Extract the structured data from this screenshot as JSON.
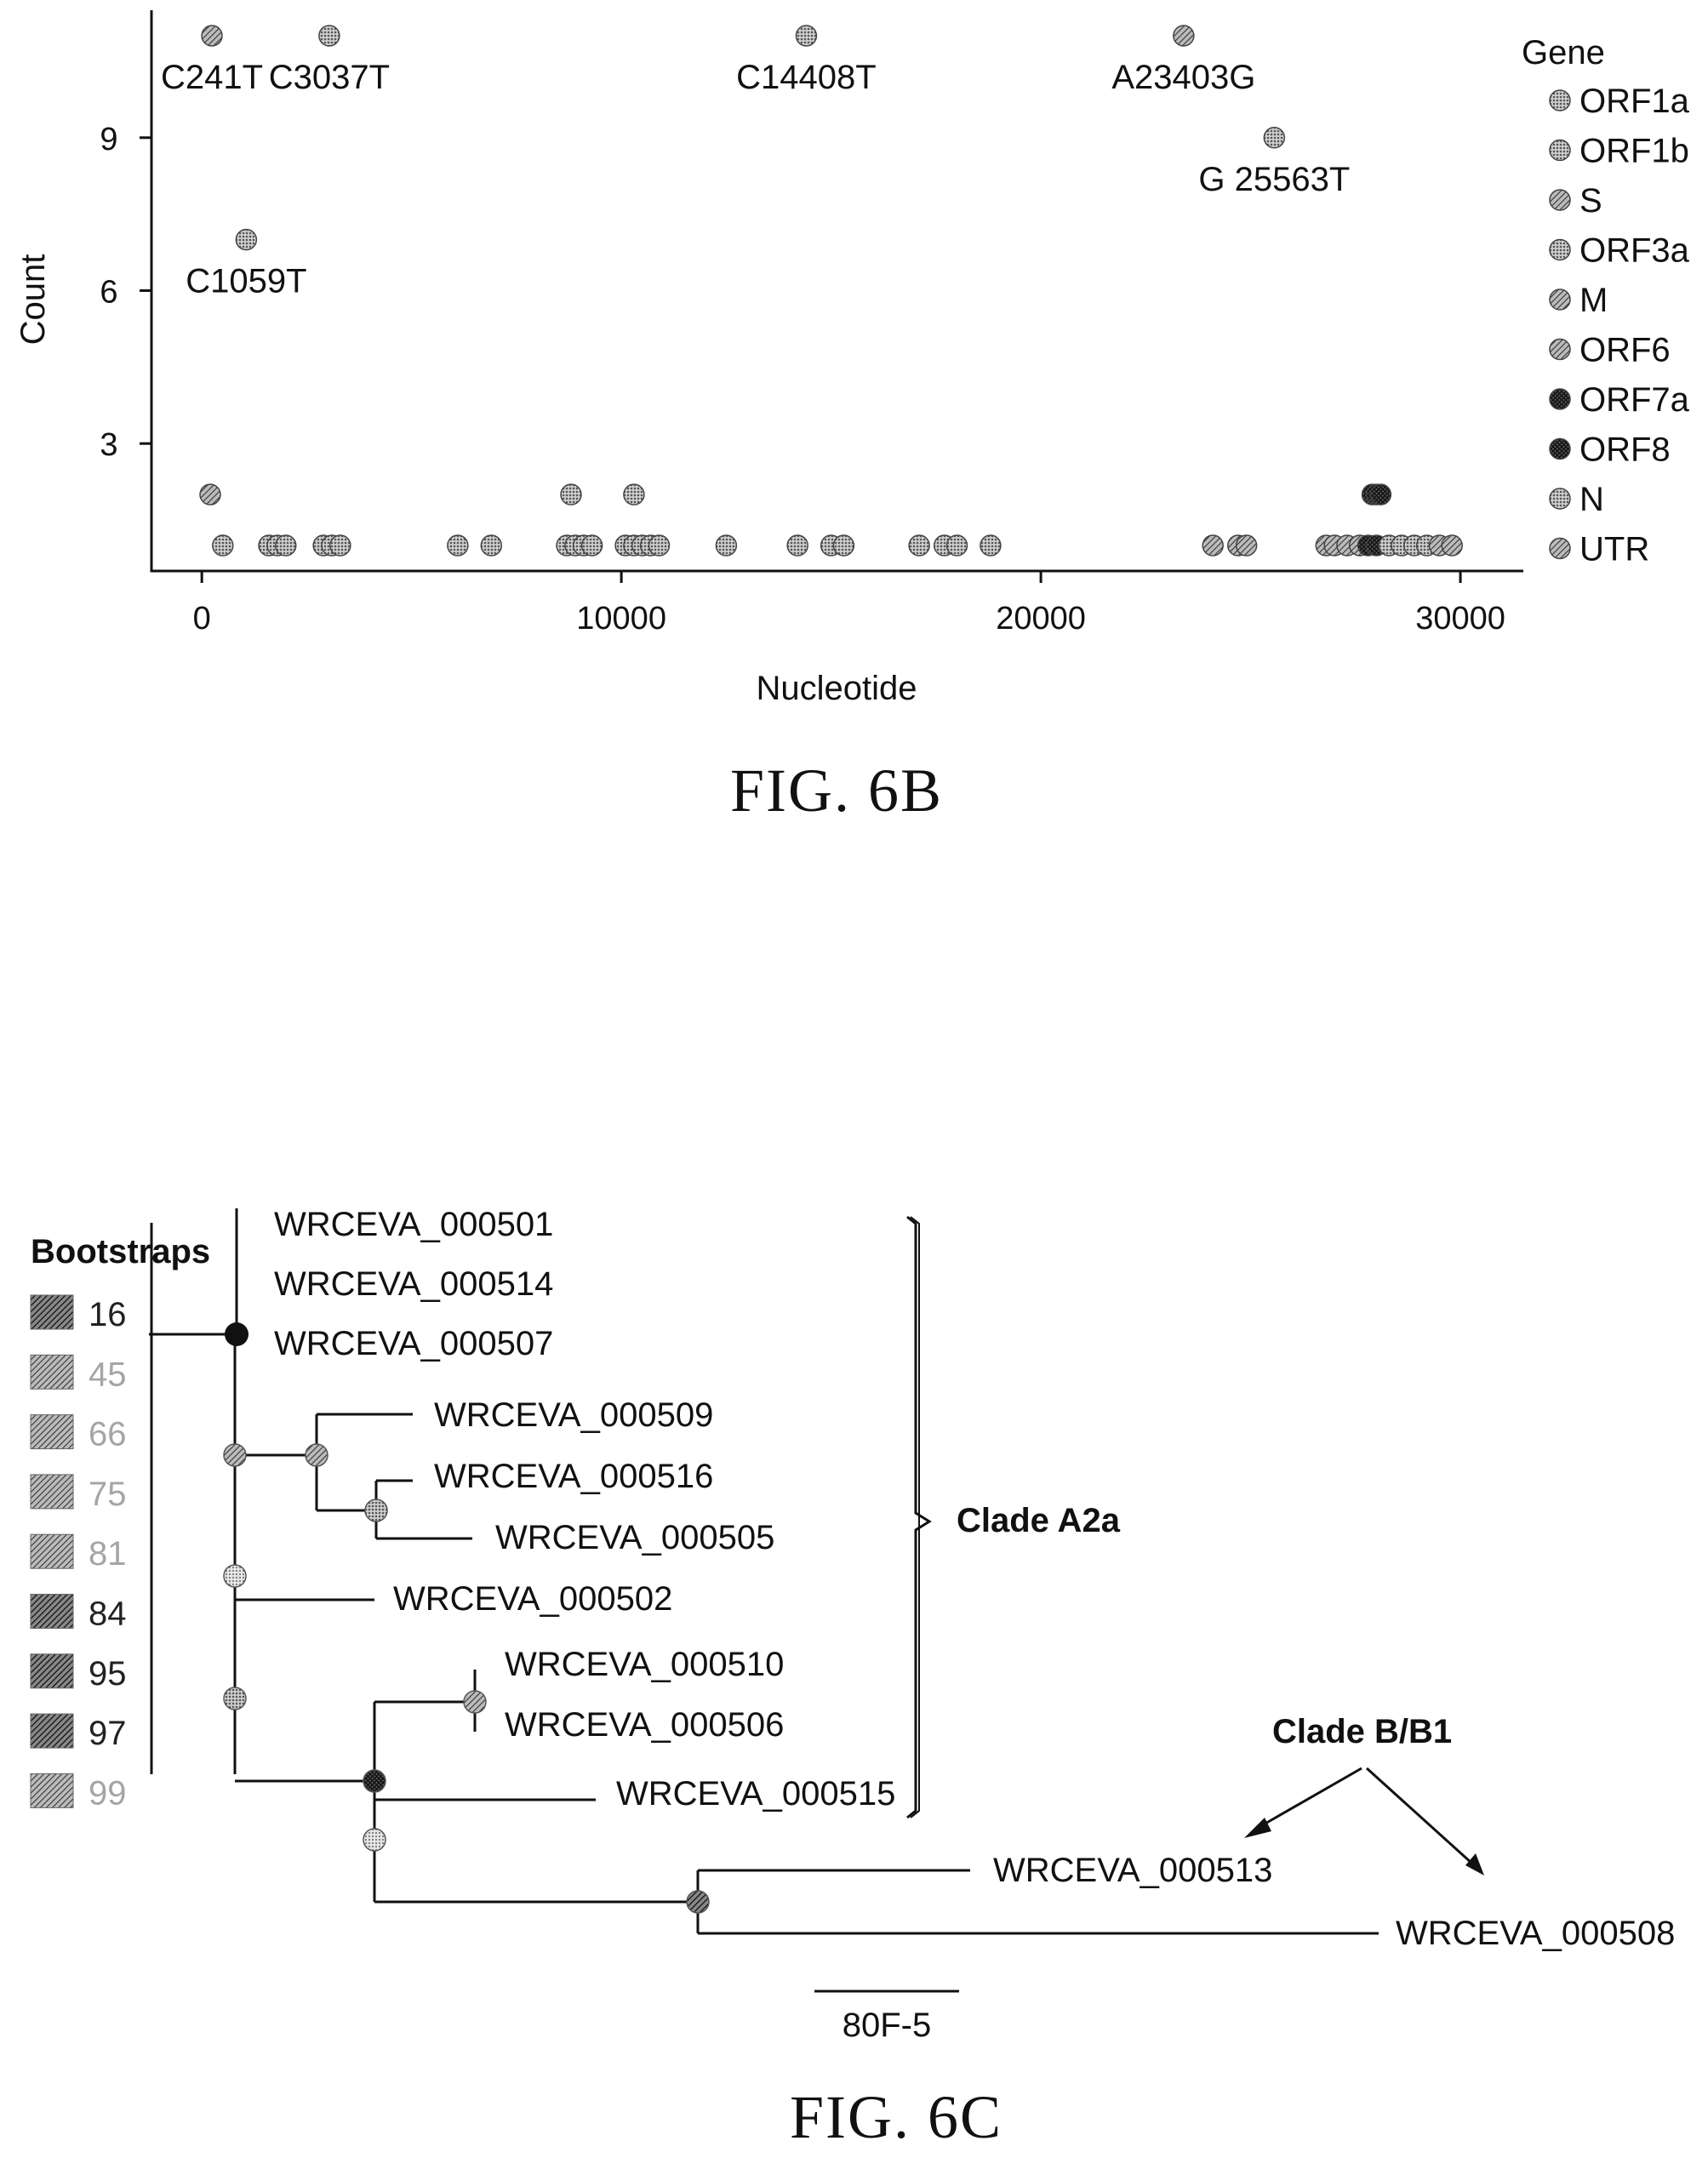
{
  "chart_data": [
    {
      "type": "scatter",
      "title": "",
      "xlabel": "Nucleotide",
      "ylabel": "Count",
      "xlim": [
        -1200,
        31500
      ],
      "ylim": [
        0.5,
        11.5
      ],
      "x_ticks": [
        0,
        10000,
        20000,
        30000
      ],
      "x_tick_labels": [
        "0",
        "10000",
        "20000",
        "30000"
      ],
      "y_ticks": [
        3,
        6,
        9
      ],
      "y_tick_labels": [
        "3",
        "6",
        "9"
      ],
      "grid": false,
      "legend_title": "Gene",
      "legend_placement": "right",
      "legend": [
        {
          "name": "ORF1a",
          "color": "#b4b4b4",
          "pattern": "dots"
        },
        {
          "name": "ORF1b",
          "color": "#c4c4c4",
          "pattern": "dots"
        },
        {
          "name": "S",
          "color": "#6e6e6e",
          "pattern": "hatch"
        },
        {
          "name": "ORF3a",
          "color": "#cfcfcf",
          "pattern": "dots"
        },
        {
          "name": "M",
          "color": "#555555",
          "pattern": "hatch"
        },
        {
          "name": "ORF6",
          "color": "#8a8a8a",
          "pattern": "hatch"
        },
        {
          "name": "ORF7a",
          "color": "#333333",
          "pattern": "cross"
        },
        {
          "name": "ORF8",
          "color": "#444444",
          "pattern": "cross"
        },
        {
          "name": "N",
          "color": "#bdbdbd",
          "pattern": "dots"
        },
        {
          "name": "UTR",
          "color": "#7a7a7a",
          "pattern": "hatch"
        }
      ],
      "points": [
        {
          "x": 241,
          "y": 11,
          "gene": "UTR"
        },
        {
          "x": 3037,
          "y": 11,
          "gene": "ORF1a"
        },
        {
          "x": 14408,
          "y": 11,
          "gene": "ORF1b"
        },
        {
          "x": 23403,
          "y": 11,
          "gene": "S"
        },
        {
          "x": 25563,
          "y": 9,
          "gene": "ORF3a"
        },
        {
          "x": 1059,
          "y": 7,
          "gene": "ORF1a"
        },
        {
          "x": 200,
          "y": 2,
          "gene": "UTR"
        },
        {
          "x": 8800,
          "y": 2,
          "gene": "ORF1a"
        },
        {
          "x": 10300,
          "y": 2,
          "gene": "ORF1a"
        },
        {
          "x": 27900,
          "y": 2,
          "gene": "ORF8"
        },
        {
          "x": 28000,
          "y": 2,
          "gene": "ORF8"
        },
        {
          "x": 28100,
          "y": 2,
          "gene": "ORF8"
        },
        {
          "x": 500,
          "y": 1,
          "gene": "ORF1a"
        },
        {
          "x": 1600,
          "y": 1,
          "gene": "ORF1a"
        },
        {
          "x": 1800,
          "y": 1,
          "gene": "ORF1a"
        },
        {
          "x": 2000,
          "y": 1,
          "gene": "ORF1a"
        },
        {
          "x": 2900,
          "y": 1,
          "gene": "ORF1a"
        },
        {
          "x": 3100,
          "y": 1,
          "gene": "ORF1a"
        },
        {
          "x": 3300,
          "y": 1,
          "gene": "ORF1a"
        },
        {
          "x": 6100,
          "y": 1,
          "gene": "ORF1a"
        },
        {
          "x": 6900,
          "y": 1,
          "gene": "ORF1a"
        },
        {
          "x": 8700,
          "y": 1,
          "gene": "ORF1a"
        },
        {
          "x": 8900,
          "y": 1,
          "gene": "ORF1a"
        },
        {
          "x": 9100,
          "y": 1,
          "gene": "ORF1a"
        },
        {
          "x": 9300,
          "y": 1,
          "gene": "ORF1a"
        },
        {
          "x": 10100,
          "y": 1,
          "gene": "ORF1a"
        },
        {
          "x": 10300,
          "y": 1,
          "gene": "ORF1a"
        },
        {
          "x": 10500,
          "y": 1,
          "gene": "ORF1a"
        },
        {
          "x": 10700,
          "y": 1,
          "gene": "ORF1a"
        },
        {
          "x": 10900,
          "y": 1,
          "gene": "ORF1a"
        },
        {
          "x": 12500,
          "y": 1,
          "gene": "ORF1a"
        },
        {
          "x": 14200,
          "y": 1,
          "gene": "ORF1b"
        },
        {
          "x": 15000,
          "y": 1,
          "gene": "ORF1b"
        },
        {
          "x": 15300,
          "y": 1,
          "gene": "ORF1b"
        },
        {
          "x": 17100,
          "y": 1,
          "gene": "ORF1b"
        },
        {
          "x": 17700,
          "y": 1,
          "gene": "ORF1b"
        },
        {
          "x": 18000,
          "y": 1,
          "gene": "ORF1b"
        },
        {
          "x": 18800,
          "y": 1,
          "gene": "ORF1b"
        },
        {
          "x": 24100,
          "y": 1,
          "gene": "S"
        },
        {
          "x": 24700,
          "y": 1,
          "gene": "S"
        },
        {
          "x": 24900,
          "y": 1,
          "gene": "S"
        },
        {
          "x": 26800,
          "y": 1,
          "gene": "M"
        },
        {
          "x": 27000,
          "y": 1,
          "gene": "M"
        },
        {
          "x": 27300,
          "y": 1,
          "gene": "M"
        },
        {
          "x": 27600,
          "y": 1,
          "gene": "ORF6"
        },
        {
          "x": 27800,
          "y": 1,
          "gene": "ORF7a"
        },
        {
          "x": 28000,
          "y": 1,
          "gene": "ORF8"
        },
        {
          "x": 28300,
          "y": 1,
          "gene": "N"
        },
        {
          "x": 28600,
          "y": 1,
          "gene": "N"
        },
        {
          "x": 28900,
          "y": 1,
          "gene": "N"
        },
        {
          "x": 29200,
          "y": 1,
          "gene": "N"
        },
        {
          "x": 29500,
          "y": 1,
          "gene": "UTR"
        },
        {
          "x": 29800,
          "y": 1,
          "gene": "UTR"
        }
      ],
      "annotations": [
        {
          "text": "C241T",
          "x": 241,
          "y": 11
        },
        {
          "text": "C3037T",
          "x": 3037,
          "y": 11
        },
        {
          "text": "C14408T",
          "x": 14408,
          "y": 11
        },
        {
          "text": "A23403G",
          "x": 23403,
          "y": 11
        },
        {
          "text": "G 25563T",
          "x": 25563,
          "y": 9
        },
        {
          "text": "C1059T",
          "x": 1059,
          "y": 7
        }
      ],
      "caption": "FIG. 6B"
    },
    {
      "type": "phylogenetic-tree",
      "caption": "FIG. 6C",
      "legend_title": "Bootstraps",
      "bootstraps": [
        {
          "value": "16",
          "color": "#444444"
        },
        {
          "value": "45",
          "color": "#9a9a9a"
        },
        {
          "value": "66",
          "color": "#a8a8a8"
        },
        {
          "value": "75",
          "color": "#8e8e8e"
        },
        {
          "value": "81",
          "color": "#b0b0b0"
        },
        {
          "value": "84",
          "color": "#6a6a6a"
        },
        {
          "value": "95",
          "color": "#333333"
        },
        {
          "value": "97",
          "color": "#3a3a3a"
        },
        {
          "value": "99",
          "color": "#9e9e9e"
        }
      ],
      "leaves": [
        "WRCEVA_000501",
        "WRCEVA_000514",
        "WRCEVA_000507",
        "WRCEVA_000509",
        "WRCEVA_000516",
        "WRCEVA_000505",
        "WRCEVA_000502",
        "WRCEVA_000510",
        "WRCEVA_000506",
        "WRCEVA_000515",
        "WRCEVA_000513",
        "WRCEVA_000508"
      ],
      "clade_labels": [
        "Clade A2a",
        "Clade B/B1"
      ],
      "scale_label": "80F-5"
    }
  ]
}
